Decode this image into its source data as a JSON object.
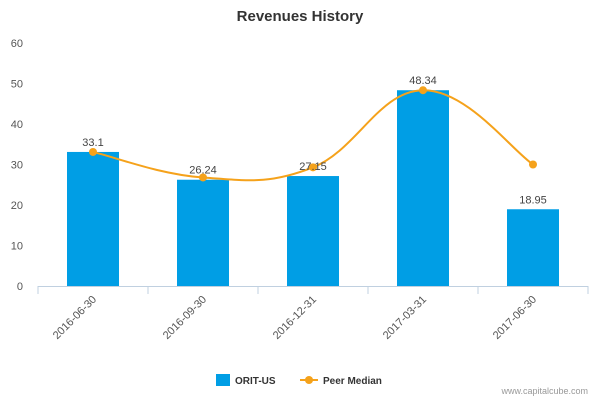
{
  "chart_data": {
    "type": "bar",
    "title": "Revenues History",
    "categories": [
      "2016-06-30",
      "2016-09-30",
      "2016-12-31",
      "2017-03-31",
      "2017-06-30"
    ],
    "series": [
      {
        "name": "ORIT-US",
        "type": "bar",
        "color": "#009ee5",
        "values": [
          33.1,
          26.24,
          27.15,
          48.34,
          18.95
        ],
        "labels": [
          "33.1",
          "26.24",
          "27.15",
          "48.34",
          "18.95"
        ]
      },
      {
        "name": "Peer Median",
        "type": "line",
        "color": "#f5a21b",
        "values": [
          33.1,
          26.8,
          29.3,
          48.34,
          30.0
        ]
      }
    ],
    "ylim": [
      0,
      60
    ],
    "yticks": [
      "0",
      "10",
      "20",
      "30",
      "40",
      "50",
      "60"
    ],
    "grid": false,
    "legend_position": "bottom-center"
  },
  "credit": "www.capitalcube.com"
}
